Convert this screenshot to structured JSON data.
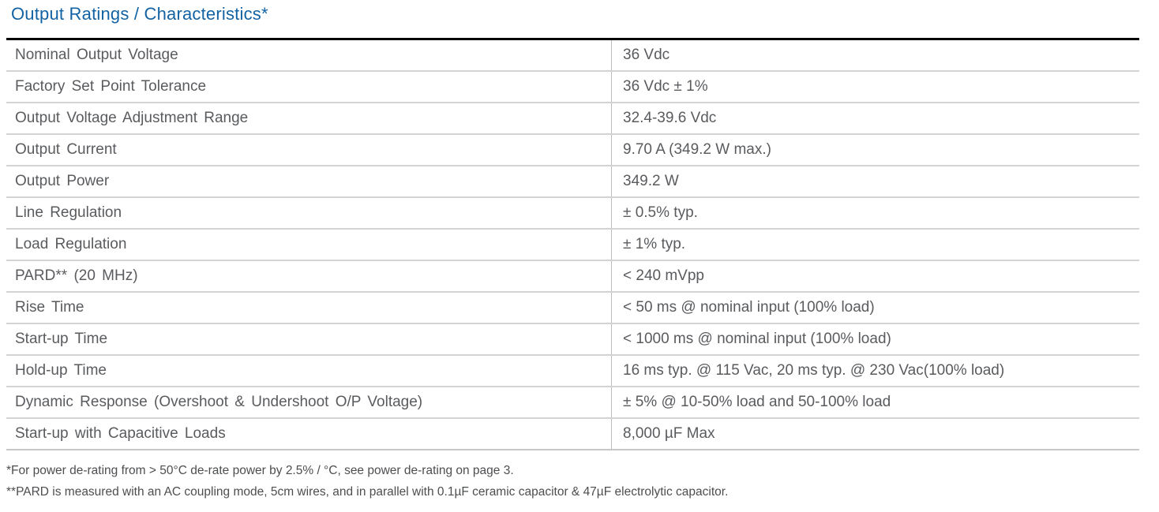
{
  "page": {
    "title": "Output Ratings / Characteristics*"
  },
  "table": {
    "rows": [
      {
        "label": "Nominal Output Voltage",
        "value": "36 Vdc"
      },
      {
        "label": "Factory Set Point Tolerance",
        "value": "36 Vdc ± 1%"
      },
      {
        "label": "Output Voltage Adjustment Range",
        "value": "32.4-39.6 Vdc"
      },
      {
        "label": "Output Current",
        "value": "9.70 A (349.2 W max.)"
      },
      {
        "label": "Output Power",
        "value": "349.2 W"
      },
      {
        "label": "Line Regulation",
        "value": "± 0.5% typ."
      },
      {
        "label": "Load Regulation",
        "value": "± 1% typ."
      },
      {
        "label": "PARD** (20 MHz)",
        "value": "< 240 mVpp"
      },
      {
        "label": "Rise Time",
        "value": "< 50 ms @ nominal input (100% load)"
      },
      {
        "label": "Start-up Time",
        "value": "< 1000 ms @ nominal input (100% load)"
      },
      {
        "label": "Hold-up Time",
        "value": "16 ms typ. @ 115 Vac, 20 ms typ. @ 230 Vac(100% load)"
      },
      {
        "label": "Dynamic Response (Overshoot & Undershoot O/P Voltage)",
        "value": "± 5% @ 10-50% load and 50-100% load"
      },
      {
        "label": "Start-up with Capacitive Loads",
        "value": "8,000 µF Max"
      }
    ]
  },
  "footnotes": [
    "*For power de-rating from > 50°C de-rate power by 2.5% / °C, see power de-rating on page 3.",
    "**PARD is measured with an AC coupling mode, 5cm wires, and in parallel with 0.1µF ceramic capacitor & 47µF electrolytic capacitor."
  ],
  "colors": {
    "title_blue": "#1363A4",
    "table_text": "#595B5E",
    "row_divider": "#D2D3D4",
    "column_divider": "#BCBDBE",
    "top_border": "#000000",
    "footnote_text": "#4D4E50"
  }
}
